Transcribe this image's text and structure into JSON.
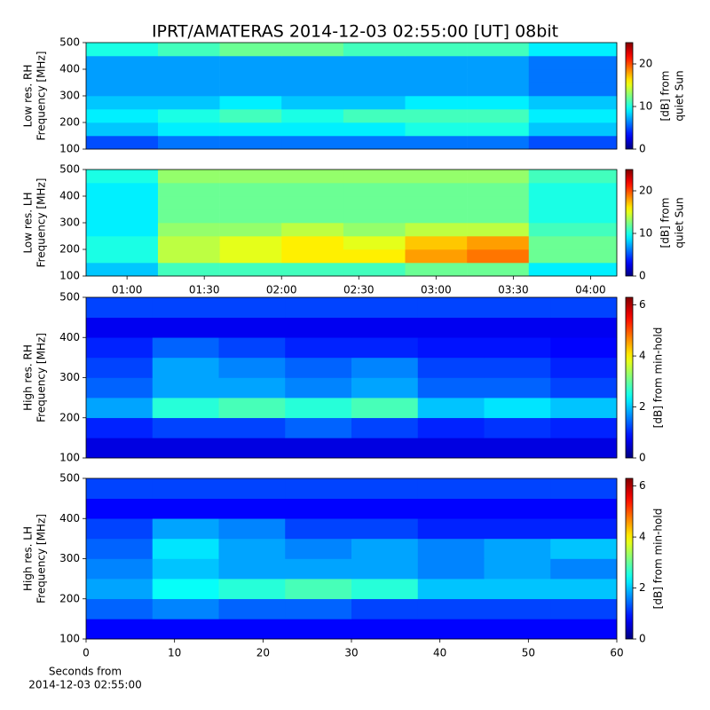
{
  "title": "IPRT/AMATERAS 2014-12-03 02:55:00 [UT]   08bit",
  "xlabel": [
    "Seconds from",
    "2014-12-03 02:55:00"
  ],
  "chart_data": [
    {
      "type": "heatmap",
      "colormap": "jet",
      "ylabel": [
        "Low res. RH",
        "Frequency [MHz]"
      ],
      "clabel": [
        "[dB] from",
        "quiet Sun"
      ],
      "xlim": [
        0.735,
        4.17
      ],
      "ylim": [
        100,
        500
      ],
      "yticks": [
        100,
        200,
        300,
        400,
        500
      ],
      "clim": [
        0,
        25
      ],
      "cticks": [
        0,
        10,
        20
      ],
      "xbins": [
        0.735,
        1.2,
        1.6,
        2.0,
        2.4,
        2.8,
        3.2,
        3.6,
        4.17
      ],
      "ybins": [
        100,
        150,
        200,
        250,
        300,
        350,
        400,
        450,
        500
      ],
      "z": [
        [
          5,
          6,
          6,
          6,
          6,
          6,
          6,
          5
        ],
        [
          8,
          9,
          9,
          9,
          9,
          10,
          10,
          8
        ],
        [
          9,
          10,
          11,
          10,
          11,
          11,
          11,
          9
        ],
        [
          8,
          8,
          9,
          8,
          8,
          9,
          9,
          8
        ],
        [
          7,
          7,
          7,
          7,
          7,
          7,
          7,
          6
        ],
        [
          7,
          7,
          7,
          7,
          7,
          7,
          7,
          6
        ],
        [
          7,
          7,
          7,
          7,
          7,
          7,
          7,
          6
        ],
        [
          10,
          11,
          12,
          12,
          11,
          11,
          11,
          9
        ]
      ]
    },
    {
      "type": "heatmap",
      "colormap": "jet",
      "ylabel": [
        "Low res. LH",
        "Frequency [MHz]"
      ],
      "clabel": [
        "[dB] from",
        "quiet Sun"
      ],
      "xlim": [
        0.735,
        4.17
      ],
      "ylim": [
        100,
        500
      ],
      "yticks": [
        100,
        200,
        300,
        400,
        500
      ],
      "clim": [
        0,
        25
      ],
      "cticks": [
        0,
        10,
        20
      ],
      "xticks": [
        {
          "value": 1,
          "label": "01:00"
        },
        {
          "value": 1.5,
          "label": "01:30"
        },
        {
          "value": 2,
          "label": "02:00"
        },
        {
          "value": 2.5,
          "label": "02:30"
        },
        {
          "value": 3,
          "label": "03:00"
        },
        {
          "value": 3.5,
          "label": "03:30"
        },
        {
          "value": 4,
          "label": "04:00"
        }
      ],
      "xbins": [
        0.735,
        1.2,
        1.6,
        2.0,
        2.4,
        2.8,
        3.2,
        3.6,
        4.17
      ],
      "ybins": [
        100,
        150,
        200,
        250,
        300,
        350,
        400,
        450,
        500
      ],
      "z": [
        [
          8,
          11,
          11,
          11,
          11,
          12,
          12,
          9
        ],
        [
          10,
          14,
          15,
          16,
          16,
          18,
          19,
          12
        ],
        [
          10,
          14,
          15,
          16,
          15,
          17,
          18,
          12
        ],
        [
          9,
          13,
          13,
          14,
          13,
          14,
          14,
          11
        ],
        [
          9,
          12,
          12,
          12,
          12,
          12,
          12,
          10
        ],
        [
          9,
          12,
          12,
          12,
          12,
          12,
          12,
          10
        ],
        [
          9,
          12,
          12,
          12,
          12,
          12,
          12,
          10
        ],
        [
          10,
          13,
          13,
          13,
          13,
          13,
          13,
          11
        ]
      ]
    },
    {
      "type": "heatmap",
      "colormap": "jet",
      "ylabel": [
        "High res. RH",
        "Frequency [MHz]"
      ],
      "clabel": [
        "[dB] from min-hold"
      ],
      "xlim": [
        0,
        60
      ],
      "ylim": [
        100,
        500
      ],
      "yticks": [
        100,
        200,
        300,
        400,
        500
      ],
      "clim": [
        0,
        6.3
      ],
      "cticks": [
        0,
        2,
        4,
        6
      ],
      "xbins": [
        0,
        7.5,
        15,
        22.5,
        30,
        37.5,
        45,
        52.5,
        60
      ],
      "ybins": [
        100,
        150,
        200,
        250,
        300,
        350,
        400,
        450,
        500
      ],
      "z": [
        [
          0.6,
          0.6,
          0.6,
          0.6,
          0.6,
          0.6,
          0.6,
          0.6
        ],
        [
          1.0,
          1.2,
          1.2,
          1.4,
          1.2,
          1.0,
          1.1,
          1.0
        ],
        [
          1.8,
          2.6,
          2.8,
          2.6,
          2.8,
          2.0,
          2.2,
          2.0
        ],
        [
          1.4,
          1.8,
          1.8,
          1.6,
          1.8,
          1.4,
          1.4,
          1.2
        ],
        [
          1.2,
          1.8,
          1.6,
          1.4,
          1.6,
          1.2,
          1.2,
          1.0
        ],
        [
          1.0,
          1.4,
          1.2,
          1.0,
          1.0,
          0.9,
          0.9,
          0.8
        ],
        [
          0.7,
          0.7,
          0.7,
          0.7,
          0.7,
          0.7,
          0.7,
          0.7
        ],
        [
          1.2,
          1.2,
          1.2,
          1.2,
          1.2,
          1.2,
          1.2,
          1.2
        ]
      ]
    },
    {
      "type": "heatmap",
      "colormap": "jet",
      "ylabel": [
        "High res. LH",
        "Frequency [MHz]"
      ],
      "clabel": [
        "[dB] from min-hold"
      ],
      "xlim": [
        0,
        60
      ],
      "ylim": [
        100,
        500
      ],
      "yticks": [
        100,
        200,
        300,
        400,
        500
      ],
      "clim": [
        0,
        6.3
      ],
      "cticks": [
        0,
        2,
        4,
        6
      ],
      "xticks": [
        0,
        10,
        20,
        30,
        40,
        50,
        60
      ],
      "xbins": [
        0,
        7.5,
        15,
        22.5,
        30,
        37.5,
        45,
        52.5,
        60
      ],
      "ybins": [
        100,
        150,
        200,
        250,
        300,
        350,
        400,
        450,
        500
      ],
      "z": [
        [
          0.8,
          0.8,
          0.8,
          0.8,
          0.8,
          0.8,
          0.8,
          0.8
        ],
        [
          1.4,
          1.6,
          1.4,
          1.4,
          1.2,
          1.2,
          1.2,
          1.2
        ],
        [
          1.8,
          2.4,
          2.6,
          2.8,
          2.6,
          2.0,
          2.0,
          2.0
        ],
        [
          1.6,
          2.0,
          1.8,
          1.8,
          1.8,
          1.6,
          1.8,
          1.6
        ],
        [
          1.4,
          2.2,
          1.8,
          1.6,
          1.8,
          1.6,
          1.8,
          2.0
        ],
        [
          1.2,
          1.8,
          1.6,
          1.2,
          1.2,
          1.0,
          1.0,
          1.0
        ],
        [
          0.8,
          0.8,
          0.8,
          0.8,
          0.8,
          0.8,
          0.8,
          0.8
        ],
        [
          1.2,
          1.2,
          1.2,
          1.2,
          1.2,
          1.2,
          1.2,
          1.2
        ]
      ]
    }
  ]
}
